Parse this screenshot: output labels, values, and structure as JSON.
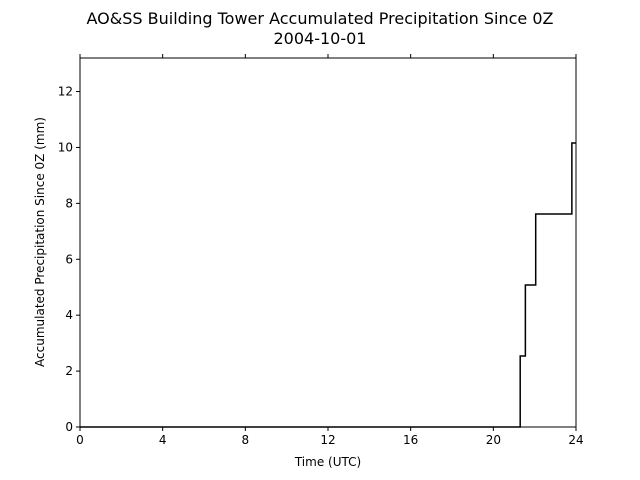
{
  "chart_data": {
    "type": "line",
    "title": "AO&SS Building Tower Accumulated Precipitation Since 0Z",
    "subtitle": "2004-10-01",
    "xlabel": "Time (UTC)",
    "ylabel": "Accumulated Precipitation Since 0Z (mm)",
    "xlim": [
      0,
      24
    ],
    "ylim": [
      0,
      13.2
    ],
    "xticks": [
      0,
      4,
      8,
      12,
      16,
      20,
      24
    ],
    "yticks": [
      0,
      2,
      4,
      6,
      8,
      10,
      12
    ],
    "grid": false,
    "line_color": "#000000",
    "series": [
      {
        "step": true,
        "x": [
          0,
          21.3,
          21.3,
          21.55,
          21.55,
          22.05,
          22.05,
          23.8,
          23.8,
          24
        ],
        "y": [
          0,
          0,
          2.54,
          2.54,
          5.08,
          5.08,
          7.62,
          7.62,
          10.16,
          10.16
        ]
      }
    ]
  }
}
